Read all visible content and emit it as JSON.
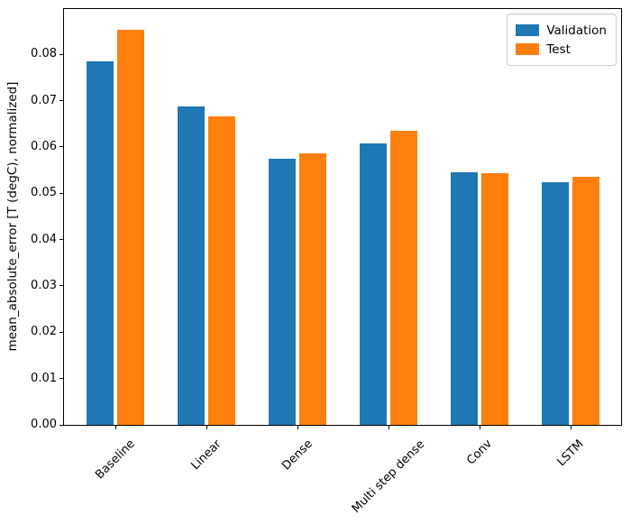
{
  "chart_data": {
    "type": "bar",
    "title": "",
    "xlabel": "",
    "ylabel": "mean_absolute_error [T (degC), normalized]",
    "categories": [
      "Baseline",
      "Linear",
      "Dense",
      "Multi step dense",
      "Conv",
      "LSTM"
    ],
    "series": [
      {
        "name": "Validation",
        "color": "#1f77b4",
        "values": [
          0.0785,
          0.0688,
          0.0575,
          0.0608,
          0.0545,
          0.0524
        ]
      },
      {
        "name": "Test",
        "color": "#ff7f0e",
        "values": [
          0.0854,
          0.0666,
          0.0586,
          0.0635,
          0.0543,
          0.0535
        ]
      }
    ],
    "ylim": [
      0,
      0.0898
    ],
    "ytick_labels": [
      "0.00",
      "0.01",
      "0.02",
      "0.03",
      "0.04",
      "0.05",
      "0.06",
      "0.07",
      "0.08"
    ],
    "x_tick_rotation": 45,
    "grid": false,
    "legend": {
      "location": "upper right",
      "entries": [
        "Validation",
        "Test"
      ]
    }
  }
}
